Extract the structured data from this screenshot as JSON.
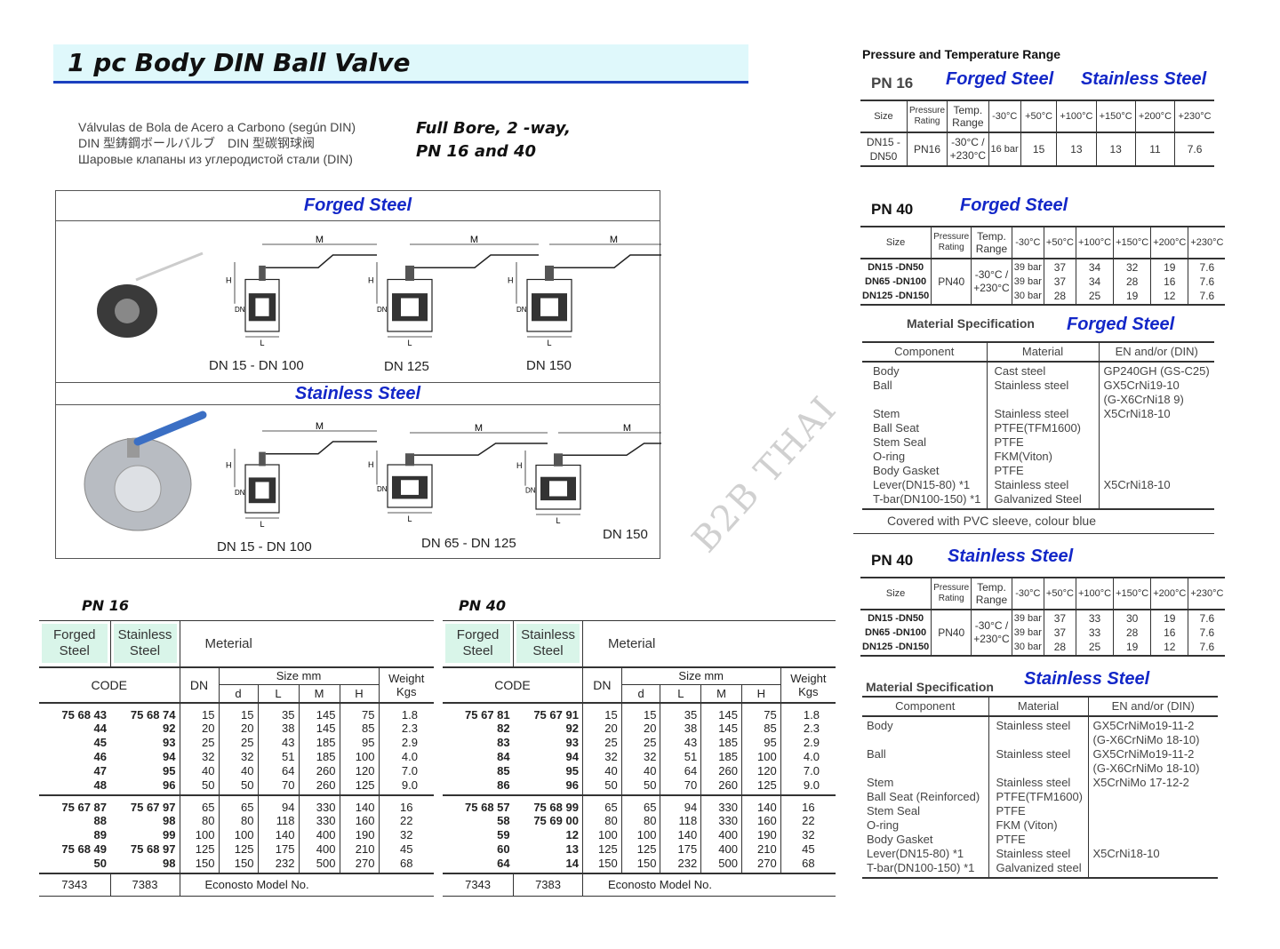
{
  "title": "1 pc Body DIN Ball Valve",
  "subtitle_lines": [
    "Válvulas de Bola de Acero a Carbono (según DIN)",
    "DIN 型鋳鋼ボールバルブ　DIN 型碳钢球阀",
    "Шаровые клапаны из углеродистой стали (DIN)"
  ],
  "features": [
    "Full Bore, 2 -way,",
    "PN 16 and 40"
  ],
  "figure": {
    "forged_label": "Forged Steel",
    "stainless_label": "Stainless Steel",
    "dim_labels": {
      "M": "M",
      "H": "H",
      "DN": "DN",
      "L": "L"
    },
    "forged_captions": [
      "DN 15 - DN 100",
      "DN 125",
      "DN 150"
    ],
    "stainless_captions": [
      "DN 15 - DN 100",
      "DN 65 - DN 125",
      "DN 150"
    ],
    "handle_color": "#3b6fc4"
  },
  "watermark": "B2B THAI",
  "code_tables": [
    {
      "title": "PN 16",
      "mat1": "Forged Steel",
      "mat2": "Stainless Steel",
      "material": "Meterial",
      "code": "CODE",
      "dn": "DN",
      "size": "Size mm",
      "cols": [
        "d",
        "L",
        "M",
        "H"
      ],
      "weight": "Weight Kgs",
      "groups": [
        [
          [
            "75 68 43",
            "75 68 74",
            "15",
            "15",
            "35",
            "145",
            "75",
            "1.8"
          ],
          [
            "44",
            "92",
            "20",
            "20",
            "38",
            "145",
            "85",
            "2.3"
          ],
          [
            "45",
            "93",
            "25",
            "25",
            "43",
            "185",
            "95",
            "2.9"
          ],
          [
            "46",
            "94",
            "32",
            "32",
            "51",
            "185",
            "100",
            "4.0"
          ],
          [
            "47",
            "95",
            "40",
            "40",
            "64",
            "260",
            "120",
            "7.0"
          ],
          [
            "48",
            "96",
            "50",
            "50",
            "70",
            "260",
            "125",
            "9.0"
          ]
        ],
        [
          [
            "75 67 87",
            "75 67 97",
            "65",
            "65",
            "94",
            "330",
            "140",
            "16"
          ],
          [
            "88",
            "98",
            "80",
            "80",
            "118",
            "330",
            "160",
            "22"
          ],
          [
            "89",
            "99",
            "100",
            "100",
            "140",
            "400",
            "190",
            "32"
          ],
          [
            "75 68 49",
            "75 68 97",
            "125",
            "125",
            "175",
            "400",
            "210",
            "45"
          ],
          [
            "50",
            "98",
            "150",
            "150",
            "232",
            "500",
            "270",
            "68"
          ]
        ]
      ],
      "model": [
        "7343",
        "7383",
        "Econosto Model No."
      ]
    },
    {
      "title": "PN 40",
      "mat1": "Forged Steel",
      "mat2": "Stainless Steel",
      "material": "Meterial",
      "code": "CODE",
      "dn": "DN",
      "size": "Size mm",
      "cols": [
        "d",
        "L",
        "M",
        "H"
      ],
      "weight": "Weight Kgs",
      "groups": [
        [
          [
            "75 67 81",
            "75 67 91",
            "15",
            "15",
            "35",
            "145",
            "75",
            "1.8"
          ],
          [
            "82",
            "92",
            "20",
            "20",
            "38",
            "145",
            "85",
            "2.3"
          ],
          [
            "83",
            "93",
            "25",
            "25",
            "43",
            "185",
            "95",
            "2.9"
          ],
          [
            "84",
            "94",
            "32",
            "32",
            "51",
            "185",
            "100",
            "4.0"
          ],
          [
            "85",
            "95",
            "40",
            "40",
            "64",
            "260",
            "120",
            "7.0"
          ],
          [
            "86",
            "96",
            "50",
            "50",
            "70",
            "260",
            "125",
            "9.0"
          ]
        ],
        [
          [
            "75 68 57",
            "75 68 99",
            "65",
            "65",
            "94",
            "330",
            "140",
            "16"
          ],
          [
            "58",
            "75 69 00",
            "80",
            "80",
            "118",
            "330",
            "160",
            "22"
          ],
          [
            "59",
            "12",
            "100",
            "100",
            "140",
            "400",
            "190",
            "32"
          ],
          [
            "60",
            "13",
            "125",
            "125",
            "175",
            "400",
            "210",
            "45"
          ],
          [
            "64",
            "14",
            "150",
            "150",
            "232",
            "500",
            "270",
            "68"
          ]
        ]
      ],
      "model": [
        "7343",
        "7383",
        "Econosto Model No."
      ]
    }
  ],
  "pt_heading": "Pressure and Temperature Range",
  "pt_tables": [
    {
      "pn": "PN 16",
      "labels": [
        "Forged Steel",
        "Stainless Steel"
      ],
      "header": [
        "Size",
        "Pressure Rating",
        "Temp. Range",
        "-30°C",
        "+50°C",
        "+100°C",
        "+150°C",
        "+200°C",
        "+230°C"
      ],
      "rows": [
        [
          "DN15 - DN50",
          "PN16",
          "-30°C / +230°C",
          "16 bar",
          "15",
          "13",
          "13",
          "11",
          "7.6"
        ]
      ]
    },
    {
      "pn": "PN 40",
      "labels": [
        "Forged Steel"
      ],
      "header": [
        "Size",
        "Pressure Rating",
        "Temp. Range",
        "-30°C",
        "+50°C",
        "+100°C",
        "+150°C",
        "+200°C",
        "+230°C"
      ],
      "rows": [
        [
          "DN15 -DN50\nDN65 -DN100\nDN125 -DN150",
          "PN40",
          "-30°C / +230°C",
          "39 bar\n39 bar\n30 bar",
          "37\n37\n28",
          "34\n34\n25",
          "32\n28\n19",
          "19\n16\n12",
          "7.6\n7.6\n7.6"
        ]
      ]
    },
    {
      "pn": "PN 40",
      "labels": [
        "Stainless Steel"
      ],
      "header": [
        "Size",
        "Pressure Rating",
        "Temp. Range",
        "-30°C",
        "+50°C",
        "+100°C",
        "+150°C",
        "+200°C",
        "+230°C"
      ],
      "rows": [
        [
          "DN15 -DN50\nDN65 -DN100\nDN125 -DN150",
          "PN40",
          "-30°C / +230°C",
          "39 bar\n39 bar\n30 bar",
          "37\n37\n28",
          "33\n33\n25",
          "30\n28\n19",
          "19\n16\n12",
          "7.6\n7.6\n7.6"
        ]
      ]
    }
  ],
  "mat_specs": [
    {
      "heading": "Material Specification",
      "label": "Forged Steel",
      "header": [
        "Component",
        "Material",
        "EN and/or (DIN)"
      ],
      "rows": [
        [
          "Body\nBall\n\nStem\nBall Seat\nStem Seal\nO-ring\nBody Gasket\nLever(DN15-80) *1\nT-bar(DN100-150) *1",
          "Cast steel\nStainless steel\n\nStainless steel\nPTFE(TFM1600)\nPTFE\nFKM(Viton)\nPTFE\nStainless steel\nGalvanized Steel",
          "GP240GH (GS-C25)\nGX5CrNi19-10\n(G-X6CrNi18 9)\nX5CrNi18-10\n\n\n\n\nX5CrNi18-10\n"
        ]
      ],
      "note": "Covered with PVC sleeve, colour blue"
    },
    {
      "heading": "Material Specification",
      "label": "Stainless Steel",
      "header": [
        "Component",
        "Material",
        "EN and/or (DIN)"
      ],
      "rows": [
        [
          "Body\n\nBall\n\nStem\nBall Seat (Reinforced)\nStem Seal\nO-ring\nBody Gasket\nLever(DN15-80) *1\nT-bar(DN100-150) *1",
          "Stainless steel\n\nStainless steel\n\nStainless steel\nPTFE(TFM1600)\nPTFE\nFKM (Viton)\nPTFE\nStainless steel\nGalvanized steel",
          "GX5CrNiMo19-11-2\n(G-X6CrNiMo 18-10)\nGX5CrNiMo19-11-2\n(G-X6CrNiMo 18-10)\nX5CrNiMo 17-12-2\n\n\n\n\nX5CrNi18-10\n"
        ]
      ]
    }
  ],
  "colors": {
    "accent_blue": "#1327c8",
    "title_bg": "#dff8fb",
    "material_bg": "#d9f5e9"
  }
}
